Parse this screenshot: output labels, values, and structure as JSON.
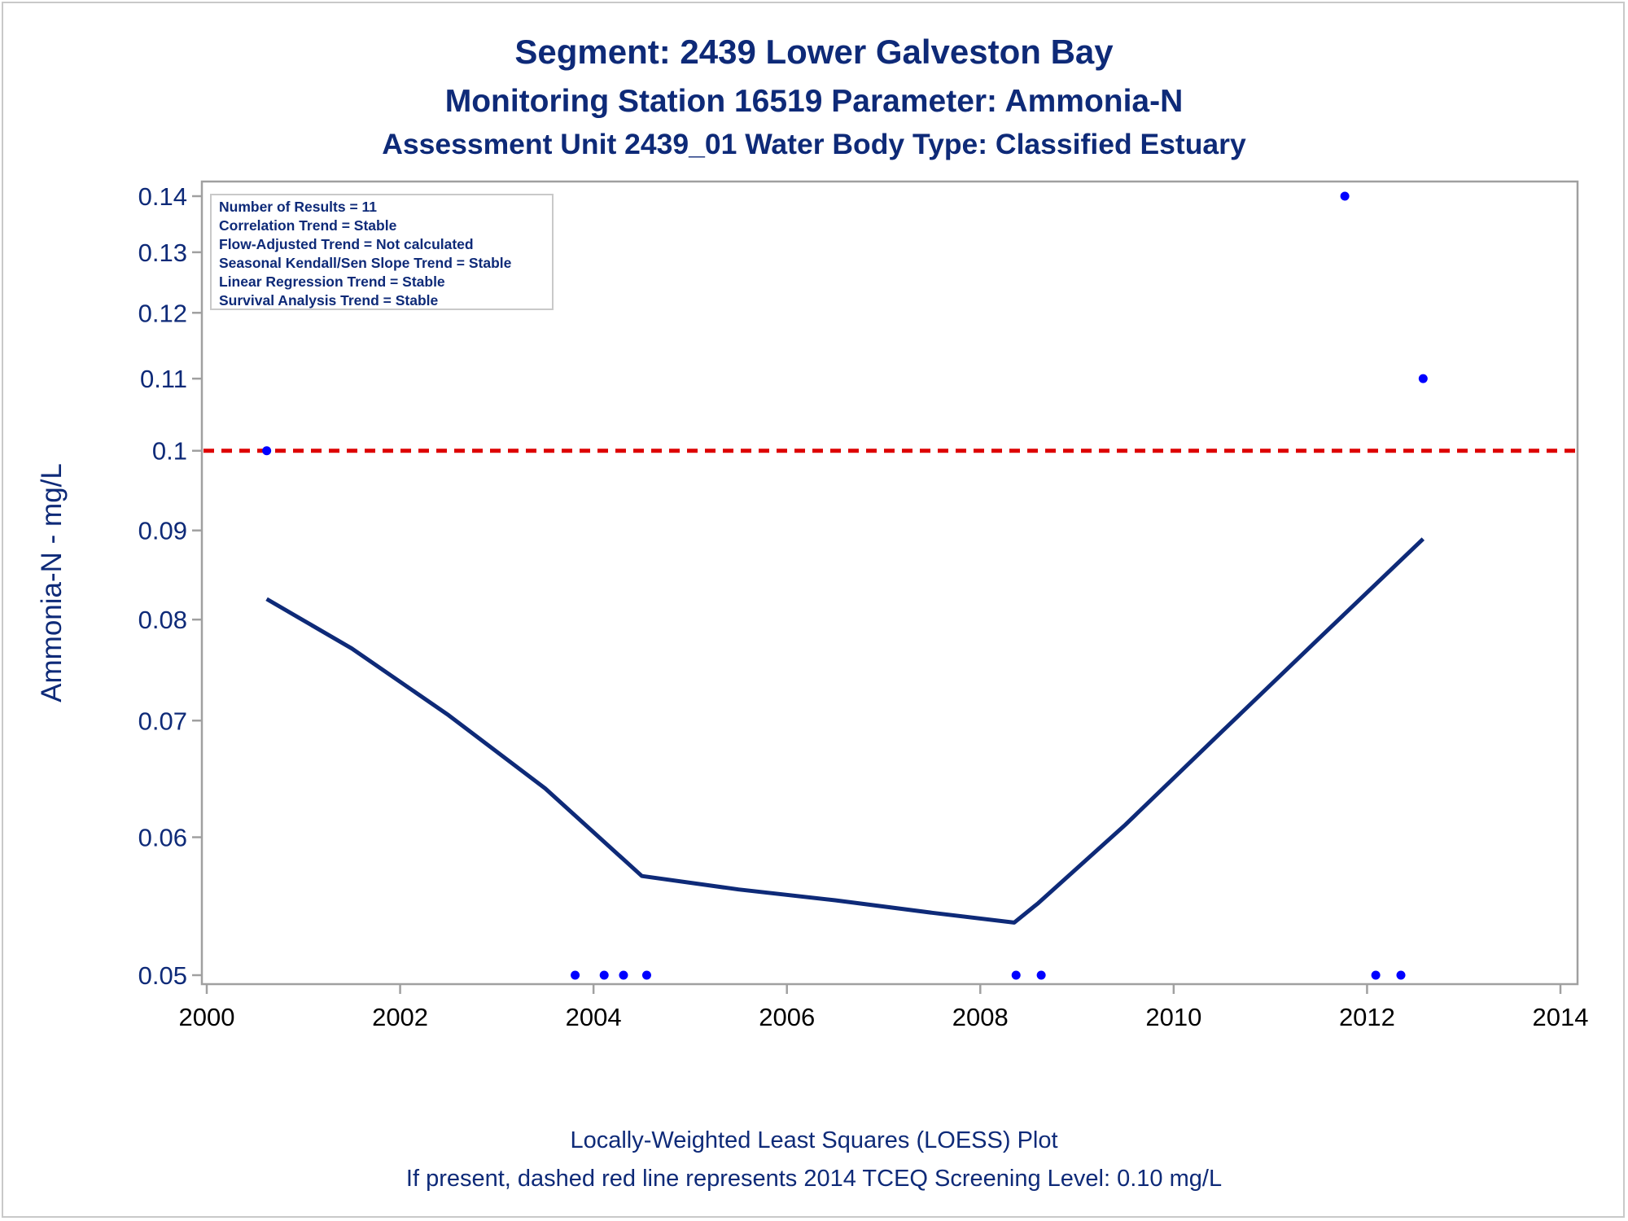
{
  "chart_data": {
    "type": "scatter",
    "title": "Segment: 2439  Lower Galveston Bay",
    "subtitle": "Monitoring Station 16519 Parameter: Ammonia-N",
    "subtitle2": "Assessment Unit 2439_01   Water Body Type: Classified Estuary",
    "xlabel": "",
    "ylabel": "Ammonia-N - mg/L",
    "y_scale": "log",
    "xlim": [
      2000,
      2014
    ],
    "ylim": [
      0.049,
      0.14
    ],
    "x_ticks": [
      "2000",
      "2002",
      "2004",
      "2006",
      "2008",
      "2010",
      "2012",
      "2014"
    ],
    "y_ticks": [
      "0.05",
      "0.06",
      "0.07",
      "0.08",
      "0.09",
      "0.1",
      "0.11",
      "0.12",
      "0.13",
      "0.14"
    ],
    "legend_placement": "top-left",
    "legend_lines": [
      "Number of Results = 11",
      "Correlation Trend = Stable",
      "Flow-Adjusted Trend = Not calculated",
      "Seasonal Kendall/Sen Slope Trend = Stable",
      "Linear Regression Trend = Stable",
      "Survival Analysis Trend = Stable"
    ],
    "points": [
      {
        "x": 2000.62,
        "y": 0.1
      },
      {
        "x": 2003.81,
        "y": 0.05
      },
      {
        "x": 2004.11,
        "y": 0.05
      },
      {
        "x": 2004.31,
        "y": 0.05
      },
      {
        "x": 2004.55,
        "y": 0.05
      },
      {
        "x": 2008.37,
        "y": 0.05
      },
      {
        "x": 2008.63,
        "y": 0.05
      },
      {
        "x": 2011.77,
        "y": 0.14
      },
      {
        "x": 2012.09,
        "y": 0.05
      },
      {
        "x": 2012.35,
        "y": 0.05
      },
      {
        "x": 2012.58,
        "y": 0.11
      }
    ],
    "loess": {
      "name": "Locally-Weighted Least Squares (LOESS) Plot",
      "x": [
        2000.62,
        2001.5,
        2002.5,
        2003.5,
        2004.5,
        2005.5,
        2006.5,
        2007.5,
        2008.35,
        2008.6,
        2009.5,
        2010.5,
        2011.5,
        2012.58
      ],
      "y": [
        0.0822,
        0.077,
        0.0705,
        0.064,
        0.057,
        0.056,
        0.0552,
        0.0543,
        0.0536,
        0.055,
        0.061,
        0.069,
        0.078,
        0.089
      ]
    },
    "screening_level": {
      "value": 0.1,
      "color": "#dd0000"
    },
    "footnote1": "Locally-Weighted Least Squares (LOESS) Plot",
    "footnote2": "If present, dashed red line represents 2014 TCEQ Screening Level: 0.10 mg/L",
    "colors": {
      "points": "#0000ff",
      "loess": "#0e2a78",
      "text": "#0e2a78",
      "frame": "#a0a0a0"
    }
  }
}
